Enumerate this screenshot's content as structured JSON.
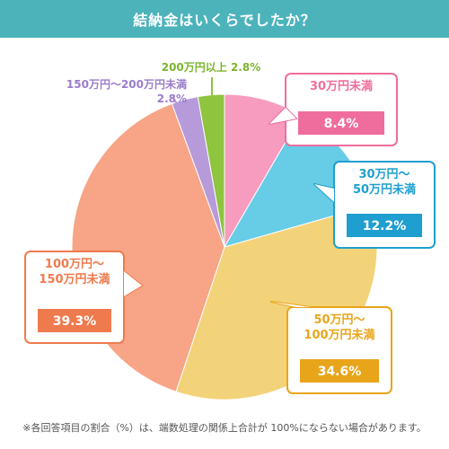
{
  "title": "結納金はいくらでしたか？",
  "colors": {
    "title_bg": "#4cb3bb"
  },
  "chart_data": {
    "type": "pie",
    "start_angle_deg": 0,
    "direction": "clockwise",
    "slices": [
      {
        "label_lines": [
          "30万円未満"
        ],
        "value": 8.4,
        "value_text": "8.4%",
        "color": "#f79bbf",
        "border": "#ee6d9c"
      },
      {
        "label_lines": [
          "30万円〜",
          "50万円未満"
        ],
        "value": 12.2,
        "value_text": "12.2%",
        "color": "#67cce6",
        "border": "#1f9fcf"
      },
      {
        "label_lines": [
          "50万円〜",
          "100万円未満"
        ],
        "value": 34.6,
        "value_text": "34.6%",
        "color": "#f3d379",
        "border": "#e8a51a"
      },
      {
        "label_lines": [
          "100万円〜",
          "150万円未満"
        ],
        "value": 39.3,
        "value_text": "39.3%",
        "color": "#f8a486",
        "border": "#ef7a4e"
      },
      {
        "label_lines": [
          "150万円〜200万円未満",
          "2.8%"
        ],
        "value": 2.8,
        "color": "#b79ad9",
        "text_color": "#9a7ccc"
      },
      {
        "label_lines": [
          "200万円以上  2.8%"
        ],
        "value": 2.8,
        "color": "#8ec43e",
        "text_color": "#7cb530"
      }
    ]
  },
  "footnote": "※各回答項目の割合（%）は、端数処理の関係上合計が 100%にならない場合があります。"
}
